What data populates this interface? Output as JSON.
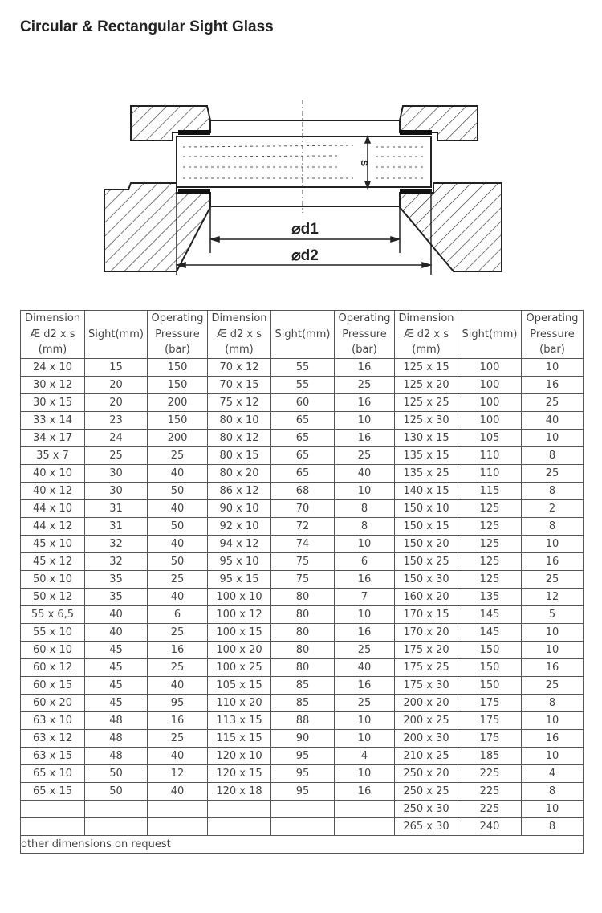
{
  "title": "Circular & Rectangular Sight Glass",
  "diagram": {
    "label_s": "s",
    "label_d1": "⌀d1",
    "label_d2": "⌀d2"
  },
  "table": {
    "headers": [
      [
        "Dimension",
        "Æ d2 x s",
        "(mm)"
      ],
      [
        "Sight(mm)"
      ],
      [
        "Operating",
        "Pressure",
        "(bar)"
      ],
      [
        "Dimension",
        "Æ d2 x s",
        "(mm)"
      ],
      [
        "Sight(mm)"
      ],
      [
        "Operating",
        "Pressure",
        "(bar)"
      ],
      [
        "Dimension",
        "Æ d2 x s",
        "(mm)"
      ],
      [
        "Sight(mm)"
      ],
      [
        "Operating",
        "Pressure",
        "(bar)"
      ]
    ],
    "rows": [
      [
        "24 x 10",
        "15",
        "150",
        "70 x 12",
        "55",
        "16",
        "125 x 15",
        "100",
        "10"
      ],
      [
        "30 x 12",
        "20",
        "150",
        "70 x 15",
        "55",
        "25",
        "125 x 20",
        "100",
        "16"
      ],
      [
        "30 x 15",
        "20",
        "200",
        "75 x 12",
        "60",
        "16",
        "125 x 25",
        "100",
        "25"
      ],
      [
        "33 x 14",
        "23",
        "150",
        "80 x 10",
        "65",
        "10",
        "125 x 30",
        "100",
        "40"
      ],
      [
        "34 x 17",
        "24",
        "200",
        "80 x 12",
        "65",
        "16",
        "130 x 15",
        "105",
        "10"
      ],
      [
        "35 x 7",
        "25",
        "25",
        "80 x 15",
        "65",
        "25",
        "135 x 15",
        "110",
        "8"
      ],
      [
        "40 x 10",
        "30",
        "40",
        "80 x 20",
        "65",
        "40",
        "135 x 25",
        "110",
        "25"
      ],
      [
        "40 x 12",
        "30",
        "50",
        "86 x 12",
        "68",
        "10",
        "140 x 15",
        "115",
        "8"
      ],
      [
        "44 x 10",
        "31",
        "40",
        "90 x 10",
        "70",
        "8",
        "150 x 10",
        "125",
        "2"
      ],
      [
        "44 x 12",
        "31",
        "50",
        "92 x 10",
        "72",
        "8",
        "150 x 15",
        "125",
        "8"
      ],
      [
        "45 x 10",
        "32",
        "40",
        "94 x 12",
        "74",
        "10",
        "150 x 20",
        "125",
        "10"
      ],
      [
        "45 x 12",
        "32",
        "50",
        "95 x 10",
        "75",
        "6",
        "150 x 25",
        "125",
        "16"
      ],
      [
        "50 x 10",
        "35",
        "25",
        "95 x 15",
        "75",
        "16",
        "150 x 30",
        "125",
        "25"
      ],
      [
        "50 x 12",
        "35",
        "40",
        "100 x 10",
        "80",
        "7",
        "160 x 20",
        "135",
        "12"
      ],
      [
        "55 x 6,5",
        "40",
        "6",
        "100 x 12",
        "80",
        "10",
        "170 x 15",
        "145",
        "5"
      ],
      [
        "55 x 10",
        "40",
        "25",
        "100 x 15",
        "80",
        "16",
        "170 x 20",
        "145",
        "10"
      ],
      [
        "60 x 10",
        "45",
        "16",
        "100 x 20",
        "80",
        "25",
        "175 x 20",
        "150",
        "10"
      ],
      [
        "60 x 12",
        "45",
        "25",
        "100 x 25",
        "80",
        "40",
        "175 x 25",
        "150",
        "16"
      ],
      [
        "60 x 15",
        "45",
        "40",
        "105 x 15",
        "85",
        "16",
        "175 x 30",
        "150",
        "25"
      ],
      [
        "60 x 20",
        "45",
        "95",
        "110 x 20",
        "85",
        "25",
        "200 x 20",
        "175",
        "8"
      ],
      [
        "63 x 10",
        "48",
        "16",
        "113 x 15",
        "88",
        "10",
        "200 x 25",
        "175",
        "10"
      ],
      [
        "63 x 12",
        "48",
        "25",
        "115 x 15",
        "90",
        "10",
        "200 x 30",
        "175",
        "16"
      ],
      [
        "63 x 15",
        "48",
        "40",
        "120 x 10",
        "95",
        "4",
        "210 x 25",
        "185",
        "10"
      ],
      [
        "65 x 10",
        "50",
        "12",
        "120 x 15",
        "95",
        "10",
        "250 x 20",
        "225",
        "4"
      ],
      [
        "65 x 15",
        "50",
        "40",
        "120 x 18",
        "95",
        "16",
        "250 x 25",
        "225",
        "8"
      ],
      [
        "",
        "",
        "",
        "",
        "",
        "",
        "250 x 30",
        "225",
        "10"
      ],
      [
        "",
        "",
        "",
        "",
        "",
        "",
        "265 x 30",
        "240",
        "8"
      ]
    ],
    "footer": "other dimensions on request"
  }
}
